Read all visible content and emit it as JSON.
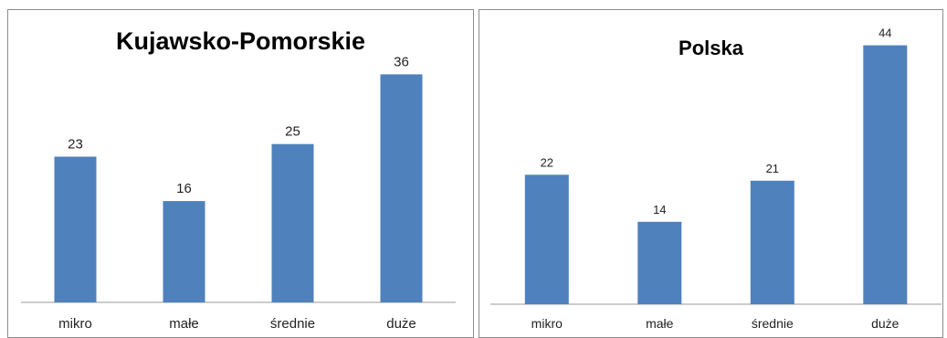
{
  "chart_data": [
    {
      "type": "bar",
      "title": "Kujawsko-Pomorskie",
      "categories": [
        "mikro",
        "małe",
        "średnie",
        "duże"
      ],
      "values": [
        23,
        16,
        25,
        36
      ],
      "ylim": [
        0,
        45
      ],
      "grid": false,
      "legend": "none",
      "xlabel": "",
      "ylabel": "",
      "bar_color": "#4F81BD"
    },
    {
      "type": "bar",
      "title": "Polska",
      "categories": [
        "mikro",
        "małe",
        "średnie",
        "duże"
      ],
      "values": [
        22,
        14,
        21,
        44
      ],
      "ylim": [
        0,
        50
      ],
      "grid": false,
      "legend": "none",
      "xlabel": "",
      "ylabel": "",
      "bar_color": "#4F81BD"
    }
  ]
}
